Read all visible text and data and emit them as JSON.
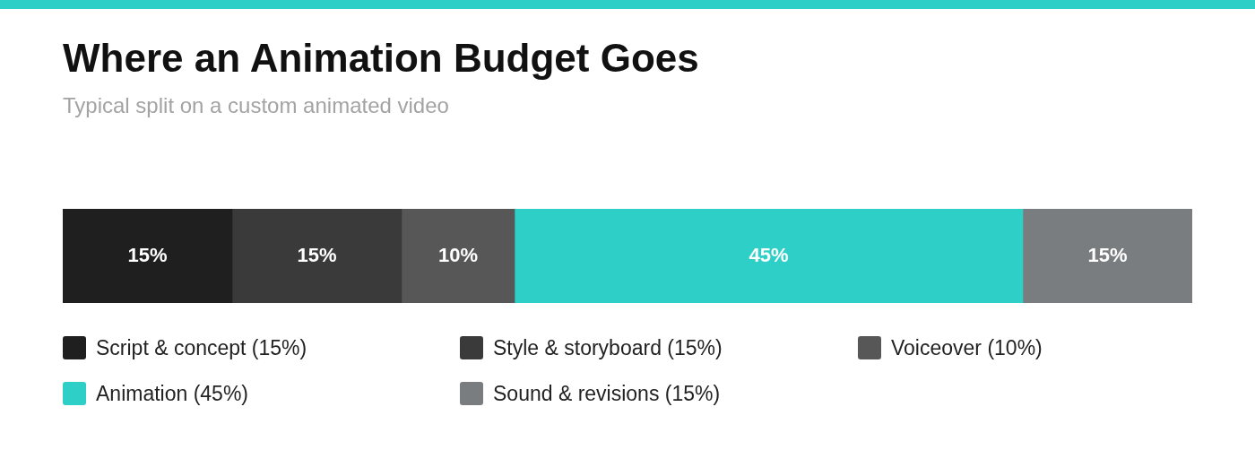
{
  "chart_data": {
    "type": "bar",
    "title": "Where an Animation Budget Goes",
    "subtitle": "Typical split on a custom animated video",
    "orientation": "horizontal",
    "stacked": true,
    "categories": [
      null
    ],
    "xlim": [
      0,
      100
    ],
    "tick_labels": false,
    "grid": false,
    "legend": "bottom",
    "series": [
      {
        "name": "Script & concept (15%)",
        "color": "#1f1f1f",
        "values": [
          15
        ],
        "value_labels": [
          "15%"
        ]
      },
      {
        "name": "Style & storyboard (15%)",
        "color": "#3a3a3a",
        "values": [
          15
        ],
        "value_labels": [
          "15%"
        ]
      },
      {
        "name": "Voiceover (10%)",
        "color": "#575757",
        "values": [
          10
        ],
        "value_labels": [
          "10%"
        ]
      },
      {
        "name": "Animation (45%)",
        "color": "#2ecfc6",
        "values": [
          45
        ],
        "value_labels": [
          "45%"
        ]
      },
      {
        "name": "Sound & revisions (15%)",
        "color": "#7a7d7f",
        "values": [
          15
        ],
        "value_labels": [
          "15%"
        ]
      }
    ]
  }
}
